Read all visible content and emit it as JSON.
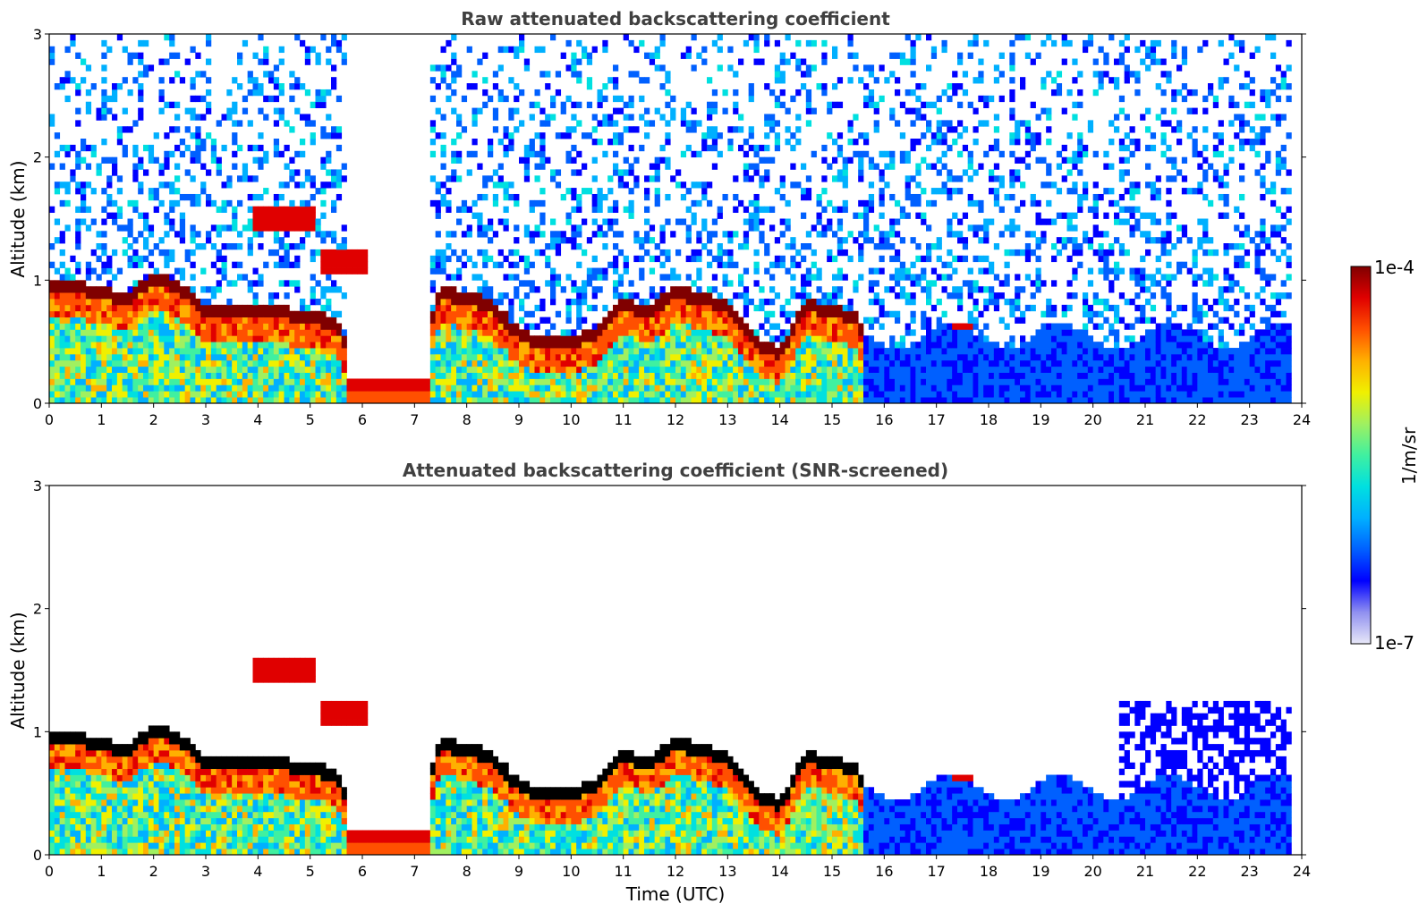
{
  "chart_data": [
    {
      "type": "heatmap",
      "title": "Raw attenuated backscattering coefficient",
      "ylabel": "Altitude (km)",
      "xlabel": "",
      "xlim": [
        0,
        24
      ],
      "ylim": [
        0,
        3
      ],
      "xticks": [
        "0",
        "1",
        "2",
        "3",
        "4",
        "5",
        "6",
        "7",
        "8",
        "9",
        "10",
        "11",
        "12",
        "13",
        "14",
        "15",
        "16",
        "17",
        "18",
        "19",
        "20",
        "21",
        "22",
        "23",
        "24"
      ],
      "yticks": [
        "0",
        "1",
        "2",
        "3"
      ],
      "cloud_top_km": [
        [
          0.0,
          1.02
        ],
        [
          0.5,
          1.0
        ],
        [
          1.0,
          0.95
        ],
        [
          1.5,
          0.88
        ],
        [
          2.0,
          1.08
        ],
        [
          2.5,
          0.98
        ],
        [
          3.0,
          0.8
        ],
        [
          3.5,
          0.8
        ],
        [
          4.0,
          0.78
        ],
        [
          4.5,
          0.78
        ],
        [
          5.0,
          0.75
        ],
        [
          5.5,
          0.7
        ],
        [
          6.0,
          0.2
        ],
        [
          6.5,
          0.2
        ],
        [
          7.0,
          0.2
        ],
        [
          7.5,
          0.95
        ],
        [
          8.0,
          0.9
        ],
        [
          8.5,
          0.85
        ],
        [
          9.0,
          0.6
        ],
        [
          9.5,
          0.55
        ],
        [
          10.0,
          0.55
        ],
        [
          10.5,
          0.62
        ],
        [
          11.0,
          0.85
        ],
        [
          11.5,
          0.8
        ],
        [
          12.0,
          0.95
        ],
        [
          12.5,
          0.9
        ],
        [
          13.0,
          0.82
        ],
        [
          13.5,
          0.55
        ],
        [
          14.0,
          0.45
        ],
        [
          14.5,
          0.85
        ],
        [
          15.0,
          0.8
        ],
        [
          15.5,
          0.75
        ],
        [
          16.0,
          0.0
        ]
      ],
      "elevated_layers": [
        {
          "t0": 3.9,
          "t1": 5.1,
          "z0": 1.4,
          "z1": 1.6
        },
        {
          "t0": 5.2,
          "t1": 6.1,
          "z0": 1.05,
          "z1": 1.25
        },
        {
          "t0": 17.3,
          "t1": 17.7,
          "z0": 0.58,
          "z1": 0.66
        }
      ]
    },
    {
      "type": "heatmap",
      "title": "Attenuated backscattering coefficient (SNR-screened)",
      "ylabel": "Altitude (km)",
      "xlabel": "Time (UTC)",
      "xlim": [
        0,
        24
      ],
      "ylim": [
        0,
        3
      ],
      "xticks": [
        "0",
        "1",
        "2",
        "3",
        "4",
        "5",
        "6",
        "7",
        "8",
        "9",
        "10",
        "11",
        "12",
        "13",
        "14",
        "15",
        "16",
        "17",
        "18",
        "19",
        "20",
        "21",
        "22",
        "23",
        "24"
      ],
      "yticks": [
        "0",
        "1",
        "2",
        "3"
      ]
    }
  ],
  "colorbar": {
    "label": "1/m/sr",
    "max_label": "1e-4",
    "min_label": "1e-7",
    "colormap": [
      "#e8e8f8",
      "#9090f0",
      "#0000ff",
      "#0060ff",
      "#00b0ff",
      "#00e0e0",
      "#40f0a0",
      "#a0f060",
      "#f0f000",
      "#ffb000",
      "#ff5000",
      "#e00000",
      "#800000"
    ]
  }
}
